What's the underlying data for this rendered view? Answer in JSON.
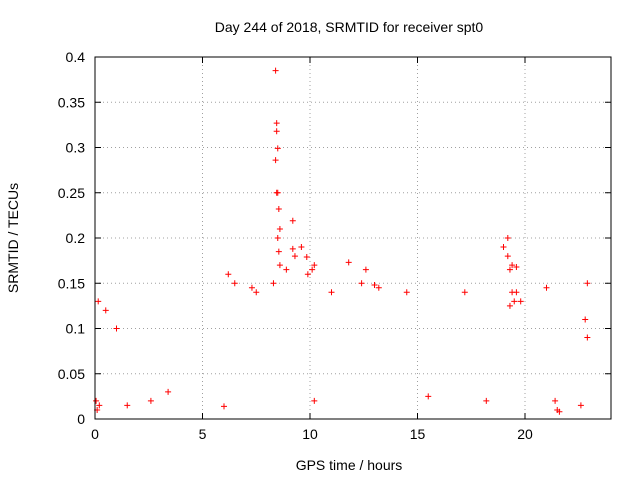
{
  "chart_data": {
    "type": "scatter",
    "title": "Day 244 of 2018, SRMTID for receiver spt0",
    "xlabel": "GPS time / hours",
    "ylabel": "SRMTID / TECUs",
    "xlim": [
      0,
      24
    ],
    "ylim": [
      0,
      0.4
    ],
    "xticks": [
      0,
      5,
      10,
      15,
      20
    ],
    "xtick_labels": [
      "0",
      "5",
      "10",
      "15",
      "20"
    ],
    "yticks": [
      0,
      0.05,
      0.1,
      0.15,
      0.2,
      0.25,
      0.3,
      0.35,
      0.4
    ],
    "ytick_labels": [
      "0",
      "0.05",
      "0.1",
      "0.15",
      "0.2",
      "0.25",
      "0.3",
      "0.35",
      "0.4"
    ],
    "grid": true,
    "marker": "+",
    "color": "#ff0000",
    "series": [
      {
        "name": "SRMTID spt0",
        "points": [
          [
            8.4,
            0.385
          ],
          [
            8.45,
            0.327
          ],
          [
            8.45,
            0.318
          ],
          [
            8.5,
            0.299
          ],
          [
            8.4,
            0.286
          ],
          [
            8.45,
            0.25
          ],
          [
            8.5,
            0.25
          ],
          [
            8.55,
            0.232
          ],
          [
            8.6,
            0.21
          ],
          [
            8.5,
            0.2
          ],
          [
            8.55,
            0.185
          ],
          [
            8.6,
            0.17
          ],
          [
            9.2,
            0.219
          ],
          [
            9.2,
            0.188
          ],
          [
            9.6,
            0.19
          ],
          [
            9.85,
            0.179
          ],
          [
            9.9,
            0.16
          ],
          [
            10.2,
            0.17
          ],
          [
            10.1,
            0.165
          ],
          [
            9.3,
            0.18
          ],
          [
            8.9,
            0.165
          ],
          [
            8.3,
            0.15
          ],
          [
            11.8,
            0.173
          ],
          [
            12.6,
            0.165
          ],
          [
            13.0,
            0.148
          ],
          [
            12.4,
            0.15
          ],
          [
            19.2,
            0.2
          ],
          [
            19.0,
            0.19
          ],
          [
            19.2,
            0.18
          ],
          [
            19.4,
            0.17
          ],
          [
            19.6,
            0.168
          ],
          [
            19.3,
            0.165
          ],
          [
            19.6,
            0.14
          ],
          [
            19.4,
            0.14
          ],
          [
            19.5,
            0.13
          ],
          [
            19.8,
            0.13
          ],
          [
            19.3,
            0.125
          ],
          [
            22.9,
            0.15
          ],
          [
            22.8,
            0.11
          ],
          [
            22.9,
            0.09
          ],
          [
            21.0,
            0.145
          ],
          [
            17.2,
            0.14
          ],
          [
            14.5,
            0.14
          ],
          [
            0.05,
            0.02
          ],
          [
            0.2,
            0.015
          ],
          [
            0.1,
            0.01
          ],
          [
            0.15,
            0.13
          ],
          [
            0.5,
            0.12
          ],
          [
            1.0,
            0.1
          ],
          [
            21.5,
            0.01
          ],
          [
            21.6,
            0.008
          ],
          [
            21.4,
            0.02
          ],
          [
            22.6,
            0.015
          ],
          [
            6.0,
            0.014
          ],
          [
            10.2,
            0.02
          ],
          [
            3.4,
            0.03
          ],
          [
            2.6,
            0.02
          ],
          [
            1.5,
            0.015
          ],
          [
            18.2,
            0.02
          ],
          [
            15.5,
            0.025
          ],
          [
            6.2,
            0.16
          ],
          [
            6.5,
            0.15
          ],
          [
            7.3,
            0.145
          ],
          [
            7.5,
            0.14
          ],
          [
            11.0,
            0.14
          ],
          [
            13.2,
            0.145
          ]
        ]
      }
    ]
  }
}
